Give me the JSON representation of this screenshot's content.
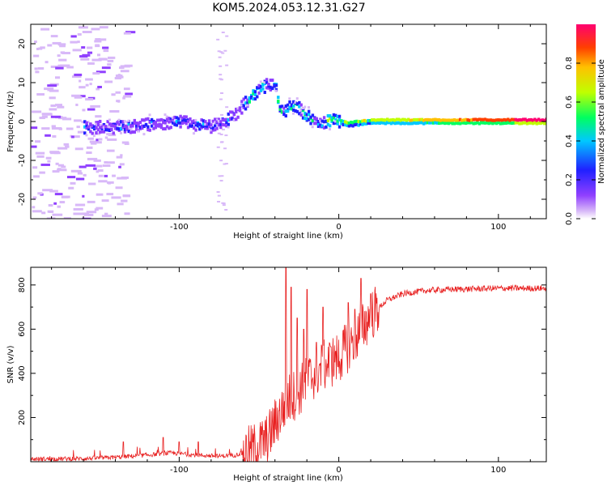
{
  "title": "KOM5.2024.053.12.31.G27",
  "colors": {
    "snr_line": "#e82020",
    "axis": "#000000"
  },
  "chart_data": [
    {
      "type": "heatmap",
      "name": "spectrogram",
      "xlabel": "Height of straight line (km)",
      "ylabel": "Frequency (Hz)",
      "xlim": [
        -193,
        130
      ],
      "ylim": [
        -25,
        25
      ],
      "xticks": [
        -100,
        0,
        100
      ],
      "yticks": [
        -20,
        -10,
        0,
        10,
        20
      ],
      "colorbar": {
        "label": "Normalized spectral amplitude",
        "range": [
          0,
          1
        ],
        "ticks": [
          "0.0",
          "0.2",
          "0.4",
          "0.6",
          "0.8"
        ],
        "colormap": [
          "#d8b8f8",
          "#9040ff",
          "#2020ff",
          "#00c8ff",
          "#00ff60",
          "#c0ff00",
          "#ffc000",
          "#ff4000",
          "#ff0070"
        ]
      },
      "ridge": [
        [
          -150,
          -1.5
        ],
        [
          -140,
          -1.5
        ],
        [
          -130,
          -1.2
        ],
        [
          -120,
          -0.8
        ],
        [
          -110,
          -0.5
        ],
        [
          -100,
          0.2
        ],
        [
          -90,
          -0.8
        ],
        [
          -80,
          -1.2
        ],
        [
          -70,
          0.5
        ],
        [
          -65,
          2
        ],
        [
          -60,
          4.5
        ],
        [
          -55,
          6.5
        ],
        [
          -50,
          8.5
        ],
        [
          -45,
          9.5
        ],
        [
          -40,
          9
        ],
        [
          -38,
          4
        ],
        [
          -35,
          2.5
        ],
        [
          -30,
          4
        ],
        [
          -25,
          3.5
        ],
        [
          -22,
          1.5
        ],
        [
          -18,
          1
        ],
        [
          -15,
          0
        ],
        [
          -10,
          -0.5
        ],
        [
          -5,
          0.3
        ],
        [
          0,
          0
        ],
        [
          5,
          -0.8
        ],
        [
          10,
          -0.5
        ],
        [
          20,
          0
        ],
        [
          40,
          0
        ],
        [
          60,
          0
        ],
        [
          80,
          0
        ],
        [
          100,
          0
        ],
        [
          130,
          0
        ]
      ]
    },
    {
      "type": "line",
      "name": "snr",
      "xlabel": "Height of straight line (km)",
      "ylabel": "SNR (v/v)",
      "xlim": [
        -193,
        130
      ],
      "ylim": [
        0,
        880
      ],
      "xticks": [
        -100,
        0,
        100
      ],
      "yticks": [
        200,
        400,
        600,
        800
      ],
      "envelope": [
        [
          -193,
          12
        ],
        [
          -160,
          14
        ],
        [
          -140,
          20
        ],
        [
          -120,
          30
        ],
        [
          -105,
          40
        ],
        [
          -90,
          30
        ],
        [
          -75,
          25
        ],
        [
          -65,
          30
        ],
        [
          -55,
          50
        ],
        [
          -45,
          100
        ],
        [
          -38,
          200
        ],
        [
          -32,
          280
        ],
        [
          -25,
          320
        ],
        [
          -18,
          380
        ],
        [
          -10,
          430
        ],
        [
          0,
          470
        ],
        [
          10,
          560
        ],
        [
          20,
          660
        ],
        [
          30,
          730
        ],
        [
          40,
          760
        ],
        [
          55,
          775
        ],
        [
          70,
          780
        ],
        [
          100,
          785
        ],
        [
          130,
          785
        ]
      ],
      "spikes": [
        [
          -135,
          90
        ],
        [
          -110,
          110
        ],
        [
          -100,
          90
        ],
        [
          -88,
          90
        ],
        [
          -33,
          880
        ],
        [
          -30,
          790
        ],
        [
          -26,
          650
        ],
        [
          -22,
          600
        ],
        [
          -20,
          780
        ],
        [
          -14,
          540
        ],
        [
          -10,
          700
        ],
        [
          -5,
          520
        ],
        [
          -2,
          500
        ],
        [
          6,
          720
        ],
        [
          10,
          690
        ],
        [
          14,
          830
        ],
        [
          20,
          760
        ]
      ]
    }
  ]
}
